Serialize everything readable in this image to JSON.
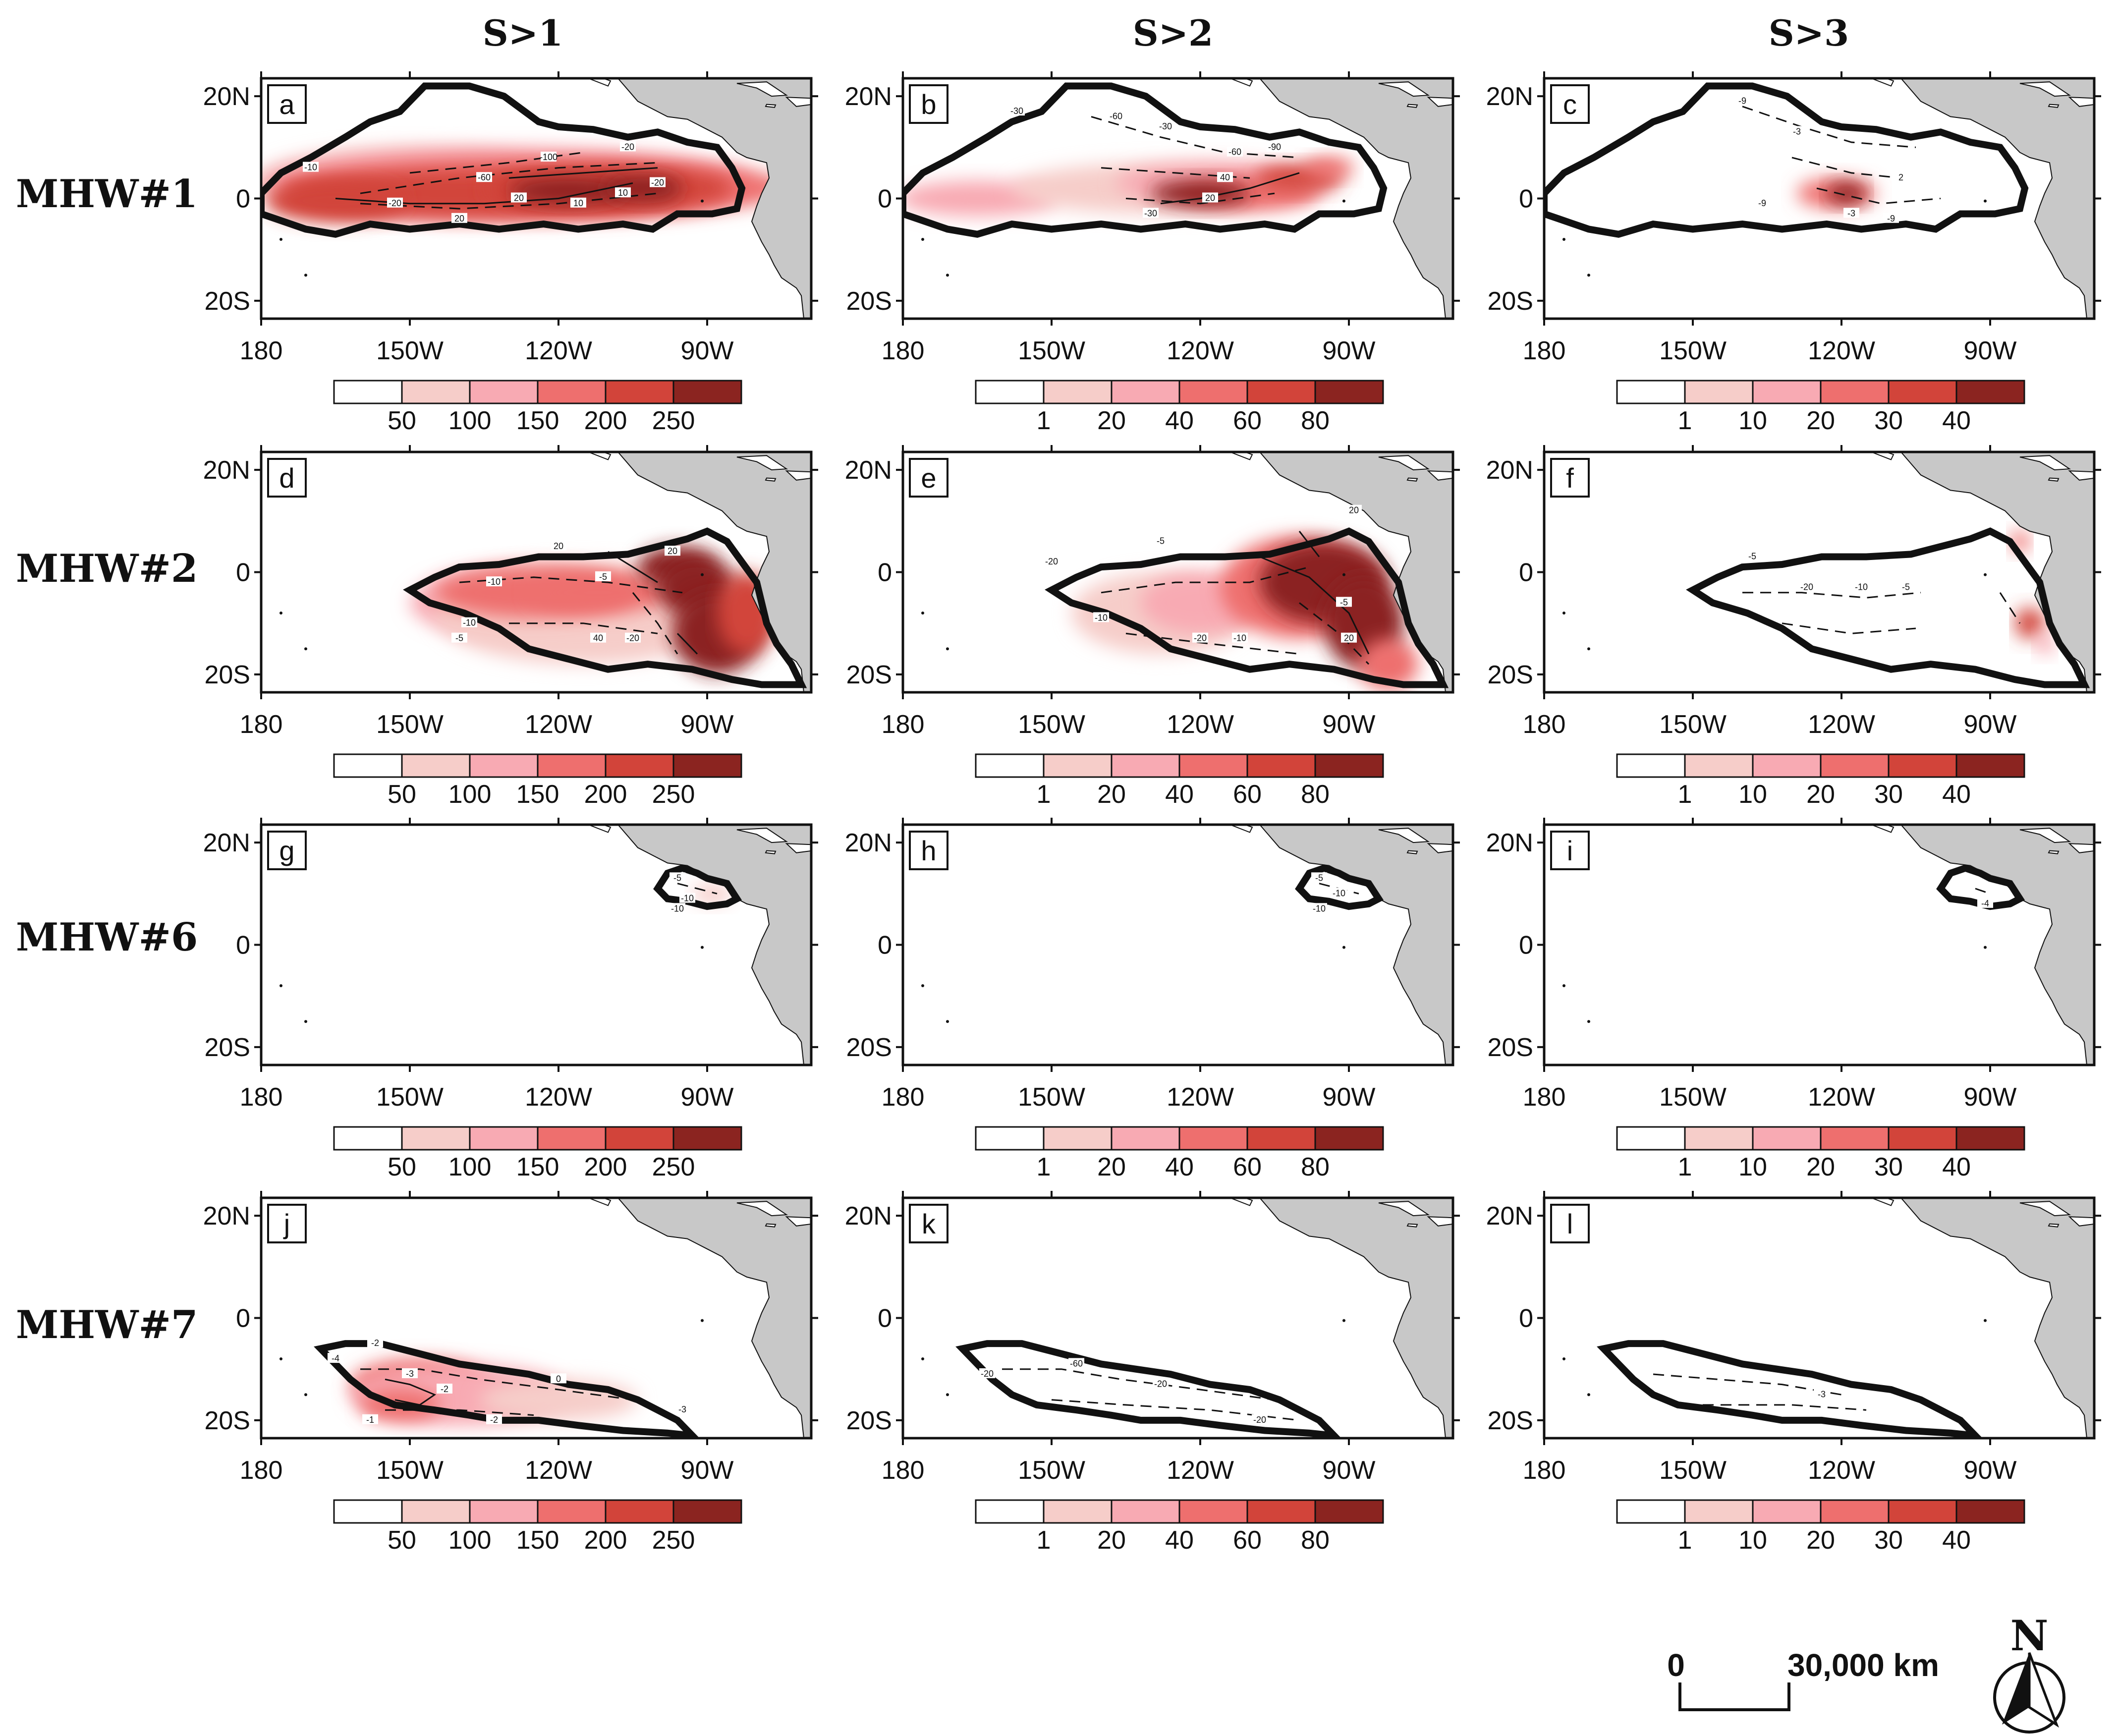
{
  "column_titles": [
    "S>1",
    "S>2",
    "S>3"
  ],
  "row_titles": [
    "MHW#1",
    "MHW#2",
    "MHW#6",
    "MHW#7"
  ],
  "panel_labels": [
    "a",
    "b",
    "c",
    "d",
    "e",
    "f",
    "g",
    "h",
    "i",
    "j",
    "k",
    "l"
  ],
  "lon_ticks": [
    "180",
    "150W",
    "120W",
    "90W"
  ],
  "lat_ticks": [
    "20N",
    "0",
    "20S"
  ],
  "colorbars": [
    {
      "ticks": [
        "50",
        "100",
        "150",
        "200",
        "250"
      ]
    },
    {
      "ticks": [
        "1",
        "20",
        "40",
        "60",
        "80"
      ]
    },
    {
      "ticks": [
        "1",
        "10",
        "20",
        "30",
        "40"
      ]
    }
  ],
  "colors": {
    "levels": [
      "#ffffff",
      "#f6cdc9",
      "#f8aab3",
      "#ee6f6e",
      "#d2443a",
      "#8b2420"
    ],
    "land": "#c8c8c8"
  },
  "contour_labels": {
    "a": [
      "-10",
      "-20",
      "-60",
      "-100",
      "20",
      "-20",
      "10",
      "10",
      "20",
      "-20"
    ],
    "b": [
      "-30",
      "-60",
      "-30",
      "-90",
      "-60",
      "40",
      "-30",
      "20"
    ],
    "c": [
      "-9",
      "-3",
      "-9",
      "2",
      "-3",
      "-9"
    ],
    "d": [
      "20",
      "-10",
      "-5",
      "20",
      "-20",
      "-10",
      "40",
      "-5"
    ],
    "e": [
      "-5",
      "-20",
      "-10",
      "-20",
      "-10",
      "20",
      "-5",
      "20"
    ],
    "f": [
      "-5",
      "-20",
      "-10",
      "-5"
    ],
    "g": [
      "-5",
      "-10",
      "-10"
    ],
    "h": [
      "-5",
      "-10",
      "-10"
    ],
    "i": [
      "-4"
    ],
    "j": [
      "-2",
      "-4",
      "-3",
      "-2",
      "-2",
      "-1",
      "0",
      "-3"
    ],
    "k": [
      "-20",
      "-60",
      "-20",
      "-20"
    ],
    "l": [
      "-3"
    ]
  },
  "scale_bar": {
    "start": "0",
    "end": "30,000 km"
  },
  "north_arrow": "N"
}
